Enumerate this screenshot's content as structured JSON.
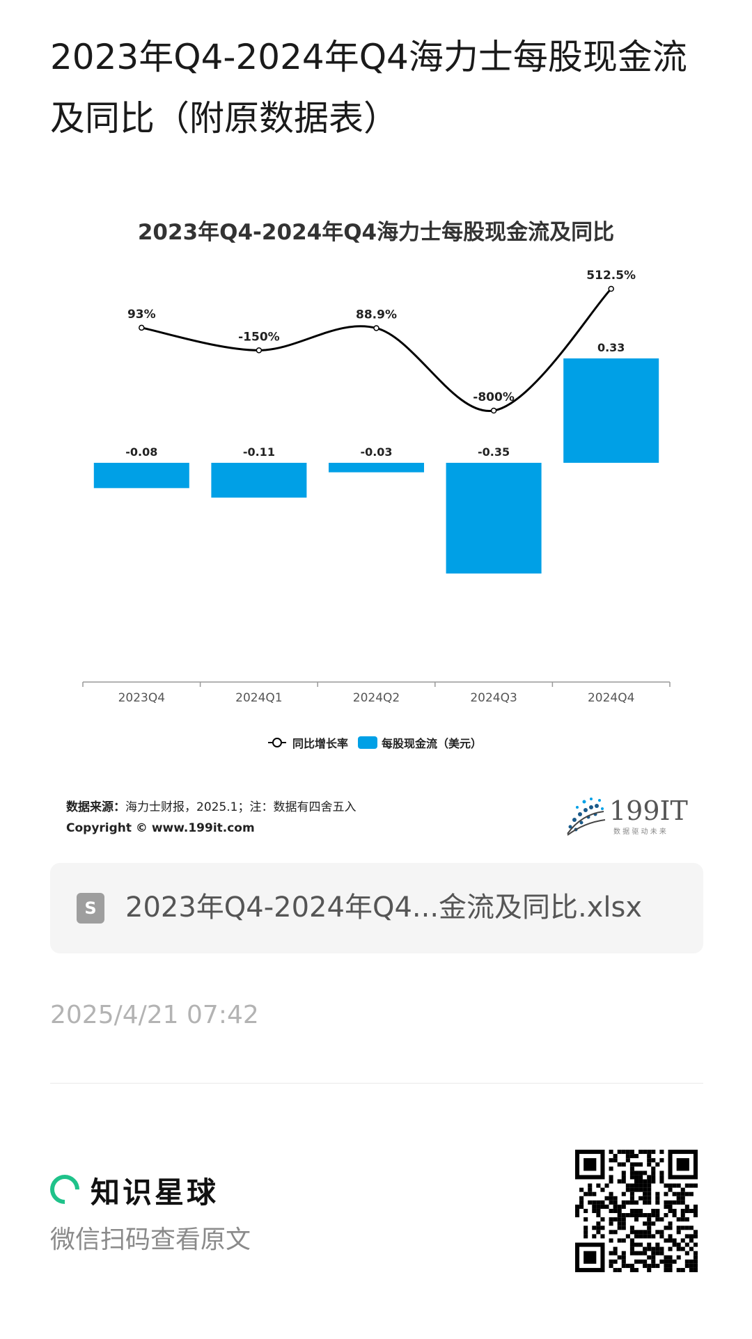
{
  "page_title": "2023年Q4-2024年Q4海力士每股现金流及同比（附原数据表）",
  "chart_data": {
    "type": "bar",
    "title": "2023年Q4-2024年Q4海力士每股现金流及同比",
    "categories": [
      "2023Q4",
      "2024Q1",
      "2024Q2",
      "2024Q3",
      "2024Q4"
    ],
    "series": [
      {
        "name": "每股现金流（美元）",
        "type": "bar",
        "values": [
          -0.08,
          -0.11,
          -0.03,
          -0.35,
          0.33
        ],
        "labels": [
          "-0.08",
          "-0.11",
          "-0.03",
          "-0.35",
          "0.33"
        ],
        "color": "#00a0e6"
      },
      {
        "name": "同比增长率",
        "type": "line",
        "values": [
          93,
          -150,
          88.9,
          -800,
          512.5
        ],
        "labels": [
          "93%",
          "-150%",
          "88.9%",
          "-800%",
          "512.5%"
        ],
        "color": "#000000"
      }
    ],
    "legend_position": "bottom",
    "grid": false
  },
  "source": {
    "label": "数据来源：",
    "text": "海力士财报，2025.1；注：数据有四舍五入",
    "copyright": "Copyright © www.199it.com"
  },
  "logo": {
    "name": "199IT",
    "tagline": "数 据 驱 动 未 来"
  },
  "file_card": {
    "icon": "S",
    "name": "2023年Q4-2024年Q4...金流及同比.xlsx"
  },
  "timestamp": "2025/4/21 07:42",
  "brand": {
    "name": "知识星球",
    "subtitle": "微信扫码查看原文"
  },
  "colors": {
    "accent_green": "#1fc28a",
    "bar_blue": "#00a0e6"
  }
}
